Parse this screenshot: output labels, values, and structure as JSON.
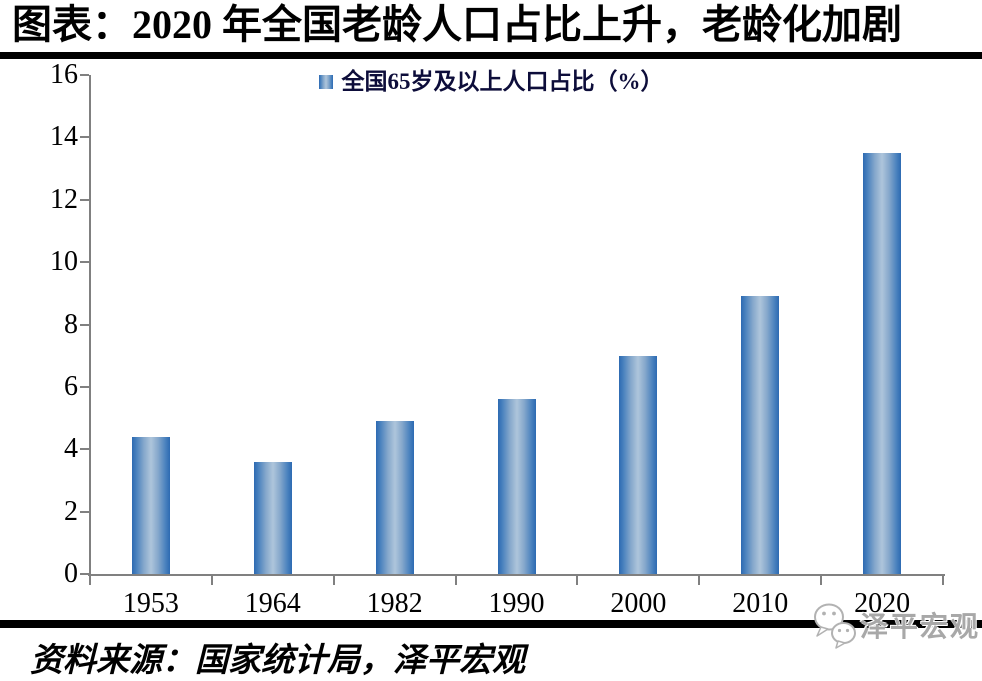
{
  "header": {
    "title": "图表：2020 年全国老龄人口占比上升，老龄化加剧"
  },
  "chart_data": {
    "type": "bar",
    "title": "图表：2020 年全国老龄人口占比上升，老龄化加剧",
    "categories": [
      "1953",
      "1964",
      "1982",
      "1990",
      "2000",
      "2010",
      "2020"
    ],
    "values": [
      4.4,
      3.6,
      4.9,
      5.6,
      7.0,
      8.9,
      13.5
    ],
    "series": [
      {
        "name": "全国65岁及以上人口占比（%）",
        "values": [
          4.4,
          3.6,
          4.9,
          5.6,
          7.0,
          8.9,
          13.5
        ]
      }
    ],
    "legend": [
      "全国65岁及以上人口占比（%）"
    ],
    "legend_position": "top-center",
    "xlabel": "",
    "ylabel": "",
    "ylim": [
      0,
      16
    ],
    "yticks": [
      0,
      2,
      4,
      6,
      8,
      10,
      12,
      14,
      16
    ],
    "grid": false,
    "bar_edge_color": "#2d6ab2",
    "bar_center_color": "#aec5db",
    "axis_color": "#808080"
  },
  "footer": {
    "source": "资料来源：国家统计局，泽平宏观",
    "watermark_label": "泽平宏观"
  },
  "colors": {
    "title_text": "#000000",
    "legend_text": "#0d0d3a",
    "rule": "#000000",
    "watermark_text": "#a8a8a8"
  }
}
